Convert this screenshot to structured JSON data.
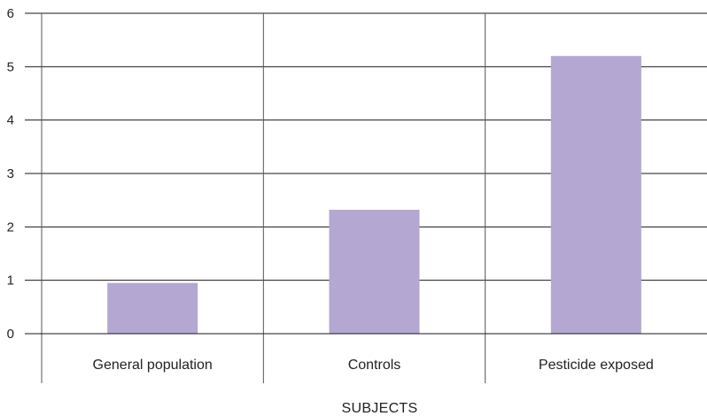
{
  "chart_data": {
    "type": "bar",
    "categories": [
      "General population",
      "Controls",
      "Pesticide exposed"
    ],
    "values": [
      0.95,
      2.32,
      5.2
    ],
    "title": "",
    "xlabel": "SUBJECTS",
    "ylabel": "",
    "ylim": [
      0,
      6
    ],
    "yticks": [
      0,
      1,
      2,
      3,
      4,
      5,
      6
    ],
    "grid": true,
    "colors": {
      "bar": "#b4a7d1",
      "grid": "#1a1a1a",
      "text": "#222222"
    }
  }
}
